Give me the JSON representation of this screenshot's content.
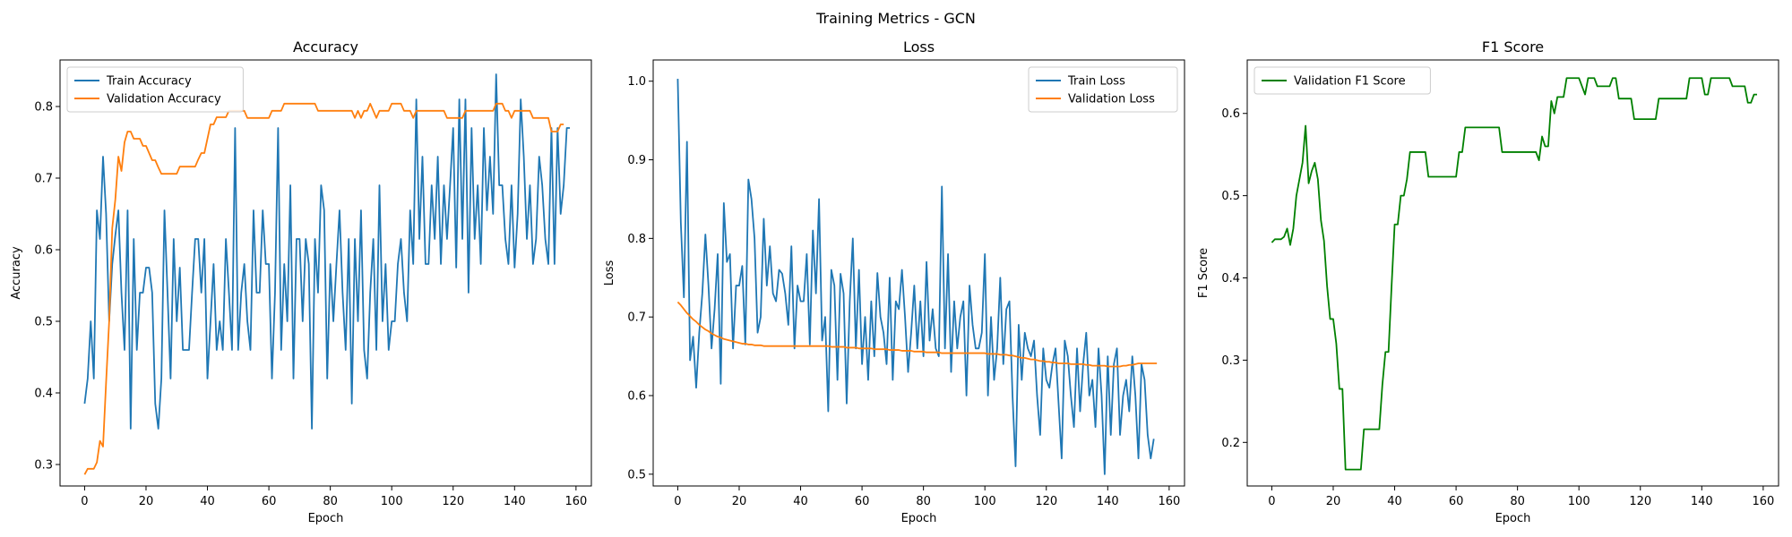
{
  "suptitle": "Training Metrics - GCN",
  "colors": {
    "train": "#1f77b4",
    "val": "#ff7f0e",
    "f1": "#008000"
  },
  "chart_data": [
    {
      "type": "line",
      "title": "Accuracy",
      "xlabel": "Epoch",
      "ylabel": "Accuracy",
      "xlim": [
        -8,
        165
      ],
      "ylim": [
        0.27,
        0.865
      ],
      "xticks": [
        0,
        20,
        40,
        60,
        80,
        100,
        120,
        140,
        160
      ],
      "yticks": [
        0.3,
        0.4,
        0.5,
        0.6,
        0.7,
        0.8
      ],
      "ytick_labels": [
        "0.3",
        "0.4",
        "0.5",
        "0.6",
        "0.7",
        "0.8"
      ],
      "legend": "top-left",
      "series": [
        {
          "name": "Train Accuracy",
          "color": "#1f77b4",
          "values": [
            0.385,
            0.42,
            0.5,
            0.42,
            0.655,
            0.615,
            0.73,
            0.65,
            0.5,
            0.58,
            0.62,
            0.655,
            0.54,
            0.46,
            0.655,
            0.35,
            0.615,
            0.46,
            0.54,
            0.54,
            0.575,
            0.575,
            0.54,
            0.385,
            0.35,
            0.42,
            0.655,
            0.54,
            0.42,
            0.615,
            0.5,
            0.575,
            0.46,
            0.46,
            0.46,
            0.54,
            0.615,
            0.615,
            0.54,
            0.615,
            0.42,
            0.5,
            0.58,
            0.46,
            0.5,
            0.46,
            0.615,
            0.54,
            0.46,
            0.77,
            0.46,
            0.54,
            0.58,
            0.5,
            0.46,
            0.655,
            0.54,
            0.54,
            0.655,
            0.58,
            0.58,
            0.42,
            0.54,
            0.77,
            0.46,
            0.58,
            0.5,
            0.69,
            0.42,
            0.615,
            0.615,
            0.5,
            0.615,
            0.58,
            0.35,
            0.615,
            0.54,
            0.69,
            0.655,
            0.42,
            0.58,
            0.5,
            0.58,
            0.655,
            0.54,
            0.46,
            0.615,
            0.385,
            0.615,
            0.5,
            0.655,
            0.46,
            0.42,
            0.54,
            0.615,
            0.46,
            0.69,
            0.5,
            0.58,
            0.46,
            0.5,
            0.5,
            0.58,
            0.615,
            0.54,
            0.5,
            0.655,
            0.58,
            0.81,
            0.615,
            0.73,
            0.58,
            0.58,
            0.69,
            0.615,
            0.73,
            0.58,
            0.69,
            0.615,
            0.69,
            0.77,
            0.575,
            0.81,
            0.615,
            0.81,
            0.54,
            0.77,
            0.615,
            0.69,
            0.58,
            0.77,
            0.655,
            0.73,
            0.65,
            0.845,
            0.69,
            0.69,
            0.615,
            0.58,
            0.69,
            0.575,
            0.65,
            0.81,
            0.73,
            0.615,
            0.69,
            0.58,
            0.615,
            0.73,
            0.69,
            0.615,
            0.58,
            0.77,
            0.58,
            0.77,
            0.65,
            0.69,
            0.77,
            0.77
          ]
        },
        {
          "name": "Validation Accuracy",
          "color": "#ff7f0e",
          "values": [
            0.286,
            0.294,
            0.294,
            0.294,
            0.303,
            0.333,
            0.325,
            0.415,
            0.5,
            0.63,
            0.67,
            0.73,
            0.71,
            0.75,
            0.765,
            0.765,
            0.755,
            0.755,
            0.755,
            0.745,
            0.745,
            0.735,
            0.725,
            0.725,
            0.715,
            0.706,
            0.706,
            0.706,
            0.706,
            0.706,
            0.706,
            0.716,
            0.716,
            0.716,
            0.716,
            0.716,
            0.716,
            0.726,
            0.735,
            0.735,
            0.755,
            0.775,
            0.775,
            0.785,
            0.785,
            0.785,
            0.785,
            0.794,
            0.794,
            0.794,
            0.794,
            0.794,
            0.794,
            0.784,
            0.784,
            0.784,
            0.784,
            0.784,
            0.784,
            0.784,
            0.784,
            0.794,
            0.794,
            0.794,
            0.794,
            0.804,
            0.804,
            0.804,
            0.804,
            0.804,
            0.804,
            0.804,
            0.804,
            0.804,
            0.804,
            0.804,
            0.794,
            0.794,
            0.794,
            0.794,
            0.794,
            0.794,
            0.794,
            0.794,
            0.794,
            0.794,
            0.794,
            0.794,
            0.784,
            0.794,
            0.784,
            0.794,
            0.794,
            0.804,
            0.794,
            0.784,
            0.794,
            0.794,
            0.794,
            0.794,
            0.804,
            0.804,
            0.804,
            0.804,
            0.794,
            0.794,
            0.794,
            0.784,
            0.794,
            0.794,
            0.794,
            0.794,
            0.794,
            0.794,
            0.794,
            0.794,
            0.794,
            0.794,
            0.784,
            0.784,
            0.784,
            0.784,
            0.784,
            0.784,
            0.794,
            0.794,
            0.794,
            0.794,
            0.794,
            0.794,
            0.794,
            0.794,
            0.794,
            0.794,
            0.804,
            0.804,
            0.804,
            0.794,
            0.794,
            0.784,
            0.794,
            0.794,
            0.794,
            0.794,
            0.794,
            0.794,
            0.784,
            0.784,
            0.784,
            0.784,
            0.784,
            0.784,
            0.765,
            0.765,
            0.765,
            0.775,
            0.775
          ]
        }
      ]
    },
    {
      "type": "line",
      "title": "Loss",
      "xlabel": "Epoch",
      "ylabel": "Loss",
      "xlim": [
        -8,
        165
      ],
      "ylim": [
        0.485,
        1.027
      ],
      "xticks": [
        0,
        20,
        40,
        60,
        80,
        100,
        120,
        140,
        160
      ],
      "yticks": [
        0.5,
        0.6,
        0.7,
        0.8,
        0.9,
        1.0
      ],
      "ytick_labels": [
        "0.5",
        "0.6",
        "0.7",
        "0.8",
        "0.9",
        "1.0"
      ],
      "legend": "top-right",
      "series": [
        {
          "name": "Train Loss",
          "color": "#1f77b4",
          "values": [
            1.003,
            0.82,
            0.725,
            0.923,
            0.645,
            0.675,
            0.61,
            0.68,
            0.73,
            0.805,
            0.74,
            0.66,
            0.71,
            0.78,
            0.615,
            0.845,
            0.77,
            0.78,
            0.66,
            0.74,
            0.74,
            0.765,
            0.665,
            0.875,
            0.85,
            0.8,
            0.68,
            0.7,
            0.825,
            0.74,
            0.79,
            0.73,
            0.72,
            0.76,
            0.755,
            0.73,
            0.69,
            0.79,
            0.66,
            0.74,
            0.72,
            0.72,
            0.78,
            0.665,
            0.81,
            0.73,
            0.85,
            0.67,
            0.7,
            0.58,
            0.76,
            0.74,
            0.62,
            0.755,
            0.73,
            0.59,
            0.72,
            0.8,
            0.66,
            0.76,
            0.64,
            0.7,
            0.62,
            0.72,
            0.65,
            0.756,
            0.7,
            0.68,
            0.64,
            0.75,
            0.62,
            0.72,
            0.71,
            0.76,
            0.7,
            0.63,
            0.68,
            0.74,
            0.66,
            0.72,
            0.65,
            0.77,
            0.67,
            0.71,
            0.66,
            0.65,
            0.866,
            0.66,
            0.78,
            0.63,
            0.72,
            0.66,
            0.7,
            0.72,
            0.6,
            0.74,
            0.69,
            0.66,
            0.66,
            0.68,
            0.78,
            0.6,
            0.7,
            0.62,
            0.66,
            0.75,
            0.64,
            0.71,
            0.72,
            0.6,
            0.51,
            0.69,
            0.62,
            0.68,
            0.66,
            0.65,
            0.67,
            0.6,
            0.55,
            0.66,
            0.62,
            0.61,
            0.64,
            0.66,
            0.59,
            0.52,
            0.67,
            0.65,
            0.6,
            0.56,
            0.66,
            0.58,
            0.64,
            0.68,
            0.6,
            0.62,
            0.56,
            0.66,
            0.6,
            0.5,
            0.65,
            0.55,
            0.64,
            0.66,
            0.55,
            0.6,
            0.62,
            0.58,
            0.65,
            0.6,
            0.52,
            0.64,
            0.62,
            0.55,
            0.52,
            0.545
          ]
        },
        {
          "name": "Validation Loss",
          "color": "#ff7f0e",
          "values": [
            0.719,
            0.715,
            0.71,
            0.705,
            0.701,
            0.697,
            0.694,
            0.69,
            0.687,
            0.684,
            0.682,
            0.679,
            0.677,
            0.675,
            0.674,
            0.672,
            0.671,
            0.67,
            0.669,
            0.668,
            0.667,
            0.666,
            0.666,
            0.665,
            0.665,
            0.664,
            0.664,
            0.664,
            0.663,
            0.663,
            0.663,
            0.663,
            0.663,
            0.663,
            0.663,
            0.663,
            0.663,
            0.663,
            0.663,
            0.663,
            0.663,
            0.663,
            0.663,
            0.663,
            0.663,
            0.663,
            0.663,
            0.663,
            0.663,
            0.663,
            0.662,
            0.662,
            0.662,
            0.662,
            0.662,
            0.661,
            0.661,
            0.661,
            0.661,
            0.66,
            0.66,
            0.66,
            0.66,
            0.66,
            0.659,
            0.659,
            0.659,
            0.659,
            0.659,
            0.658,
            0.658,
            0.658,
            0.658,
            0.657,
            0.657,
            0.657,
            0.657,
            0.656,
            0.656,
            0.656,
            0.656,
            0.655,
            0.655,
            0.655,
            0.655,
            0.655,
            0.654,
            0.654,
            0.654,
            0.654,
            0.654,
            0.654,
            0.654,
            0.654,
            0.654,
            0.654,
            0.654,
            0.654,
            0.654,
            0.654,
            0.654,
            0.653,
            0.653,
            0.653,
            0.653,
            0.652,
            0.652,
            0.652,
            0.651,
            0.651,
            0.65,
            0.649,
            0.648,
            0.648,
            0.647,
            0.646,
            0.646,
            0.645,
            0.644,
            0.644,
            0.643,
            0.643,
            0.642,
            0.642,
            0.641,
            0.641,
            0.641,
            0.641,
            0.64,
            0.64,
            0.64,
            0.64,
            0.64,
            0.639,
            0.639,
            0.638,
            0.638,
            0.638,
            0.638,
            0.638,
            0.637,
            0.637,
            0.637,
            0.637,
            0.637,
            0.638,
            0.638,
            0.639,
            0.639,
            0.64,
            0.641,
            0.641,
            0.641,
            0.641,
            0.641,
            0.641,
            0.641
          ]
        }
      ]
    },
    {
      "type": "line",
      "title": "F1 Score",
      "xlabel": "Epoch",
      "ylabel": "F1 Score",
      "xlim": [
        -8,
        165
      ],
      "ylim": [
        0.147,
        0.665
      ],
      "xticks": [
        0,
        20,
        40,
        60,
        80,
        100,
        120,
        140,
        160
      ],
      "yticks": [
        0.2,
        0.3,
        0.4,
        0.5,
        0.6
      ],
      "ytick_labels": [
        "0.2",
        "0.3",
        "0.4",
        "0.5",
        "0.6"
      ],
      "legend": "top-left",
      "series": [
        {
          "name": "Validation F1 Score",
          "color": "#008000",
          "values": [
            0.443,
            0.447,
            0.447,
            0.447,
            0.45,
            0.46,
            0.44,
            0.46,
            0.5,
            0.52,
            0.54,
            0.585,
            0.515,
            0.53,
            0.54,
            0.52,
            0.47,
            0.445,
            0.39,
            0.35,
            0.35,
            0.32,
            0.265,
            0.265,
            0.167,
            0.167,
            0.167,
            0.167,
            0.167,
            0.167,
            0.216,
            0.216,
            0.216,
            0.216,
            0.216,
            0.216,
            0.27,
            0.31,
            0.31,
            0.39,
            0.465,
            0.465,
            0.5,
            0.5,
            0.52,
            0.553,
            0.553,
            0.553,
            0.553,
            0.553,
            0.553,
            0.523,
            0.523,
            0.523,
            0.523,
            0.523,
            0.523,
            0.523,
            0.523,
            0.523,
            0.523,
            0.553,
            0.553,
            0.583,
            0.583,
            0.583,
            0.583,
            0.583,
            0.583,
            0.583,
            0.583,
            0.583,
            0.583,
            0.583,
            0.583,
            0.553,
            0.553,
            0.553,
            0.553,
            0.553,
            0.553,
            0.553,
            0.553,
            0.553,
            0.553,
            0.553,
            0.553,
            0.543,
            0.572,
            0.56,
            0.56,
            0.615,
            0.6,
            0.62,
            0.62,
            0.62,
            0.643,
            0.643,
            0.643,
            0.643,
            0.643,
            0.633,
            0.623,
            0.643,
            0.643,
            0.643,
            0.633,
            0.633,
            0.633,
            0.633,
            0.633,
            0.643,
            0.643,
            0.618,
            0.618,
            0.618,
            0.618,
            0.618,
            0.593,
            0.593,
            0.593,
            0.593,
            0.593,
            0.593,
            0.593,
            0.593,
            0.618,
            0.618,
            0.618,
            0.618,
            0.618,
            0.618,
            0.618,
            0.618,
            0.618,
            0.618,
            0.643,
            0.643,
            0.643,
            0.643,
            0.643,
            0.623,
            0.623,
            0.643,
            0.643,
            0.643,
            0.643,
            0.643,
            0.643,
            0.643,
            0.633,
            0.633,
            0.633,
            0.633,
            0.633,
            0.613,
            0.613,
            0.623,
            0.623
          ]
        }
      ]
    }
  ]
}
